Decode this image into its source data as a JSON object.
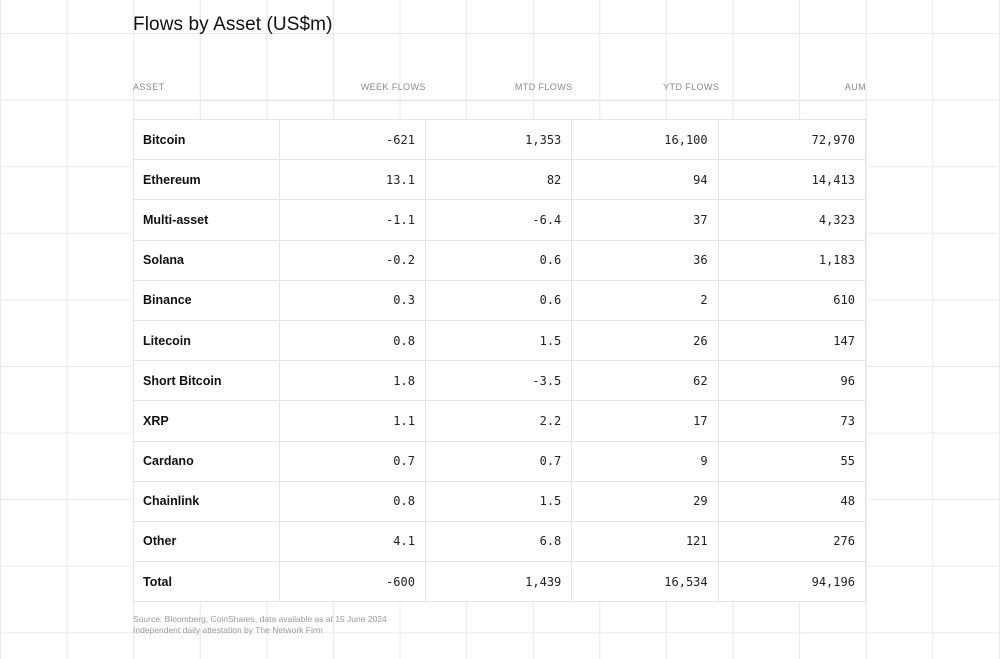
{
  "title": "Flows by Asset (US$m)",
  "table": {
    "headers": {
      "asset": "ASSET",
      "week": "WEEK FLOWS",
      "mtd": "MTD FLOWS",
      "ytd": "YTD FLOWS",
      "aum": "AUM"
    },
    "rows": [
      {
        "asset": "Bitcoin",
        "week": "-621",
        "mtd": "1,353",
        "ytd": "16,100",
        "aum": "72,970"
      },
      {
        "asset": "Ethereum",
        "week": "13.1",
        "mtd": "82",
        "ytd": "94",
        "aum": "14,413"
      },
      {
        "asset": "Multi-asset",
        "week": "-1.1",
        "mtd": "-6.4",
        "ytd": "37",
        "aum": "4,323"
      },
      {
        "asset": "Solana",
        "week": "-0.2",
        "mtd": "0.6",
        "ytd": "36",
        "aum": "1,183"
      },
      {
        "asset": "Binance",
        "week": "0.3",
        "mtd": "0.6",
        "ytd": "2",
        "aum": "610"
      },
      {
        "asset": "Litecoin",
        "week": "0.8",
        "mtd": "1.5",
        "ytd": "26",
        "aum": "147"
      },
      {
        "asset": "Short Bitcoin",
        "week": "1.8",
        "mtd": "-3.5",
        "ytd": "62",
        "aum": "96"
      },
      {
        "asset": "XRP",
        "week": "1.1",
        "mtd": "2.2",
        "ytd": "17",
        "aum": "73"
      },
      {
        "asset": "Cardano",
        "week": "0.7",
        "mtd": "0.7",
        "ytd": "9",
        "aum": "55"
      },
      {
        "asset": "Chainlink",
        "week": "0.8",
        "mtd": "1.5",
        "ytd": "29",
        "aum": "48"
      },
      {
        "asset": "Other",
        "week": "4.1",
        "mtd": "6.8",
        "ytd": "121",
        "aum": "276"
      },
      {
        "asset": "Total",
        "week": "-600",
        "mtd": "1,439",
        "ytd": "16,534",
        "aum": "94,196"
      }
    ]
  },
  "footer": {
    "source": "Source: Bloomberg, CoinShares, data available as at 15 June 2024",
    "attestation": "Independent daily attestation by The Network Firm"
  }
}
